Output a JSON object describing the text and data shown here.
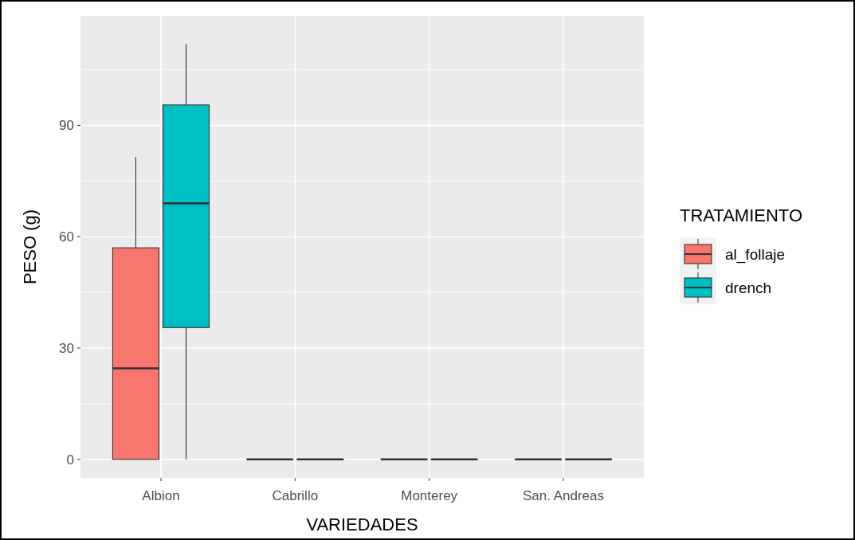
{
  "chart_data": {
    "type": "box",
    "xlabel": "VARIEDADES",
    "ylabel": "PESO (g)",
    "legend_title": "TRATAMIENTO",
    "categories": [
      "Albion",
      "Cabrillo",
      "Monterey",
      "San. Andreas"
    ],
    "series": [
      {
        "name": "al_follaje",
        "color": "#f8766d",
        "boxes": [
          {
            "low": 0,
            "q1": 0,
            "median": 24.5,
            "q3": 57,
            "high": 81.5
          },
          {
            "low": 0,
            "q1": 0,
            "median": 0,
            "q3": 0,
            "high": 0
          },
          {
            "low": 0,
            "q1": 0,
            "median": 0,
            "q3": 0,
            "high": 0
          },
          {
            "low": 0,
            "q1": 0,
            "median": 0,
            "q3": 0,
            "high": 0
          }
        ]
      },
      {
        "name": "drench",
        "color": "#00bfc4",
        "boxes": [
          {
            "low": 0,
            "q1": 35.5,
            "median": 69,
            "q3": 95.5,
            "high": 112
          },
          {
            "low": 0,
            "q1": 0,
            "median": 0,
            "q3": 0,
            "high": 0
          },
          {
            "low": 0,
            "q1": 0,
            "median": 0,
            "q3": 0,
            "high": 0
          },
          {
            "low": 0,
            "q1": 0,
            "median": 0,
            "q3": 0,
            "high": 0
          }
        ]
      }
    ],
    "ylim": [
      -5,
      119.5
    ],
    "yticks": [
      0,
      30,
      60,
      90
    ],
    "grid": true,
    "legend": "right"
  }
}
